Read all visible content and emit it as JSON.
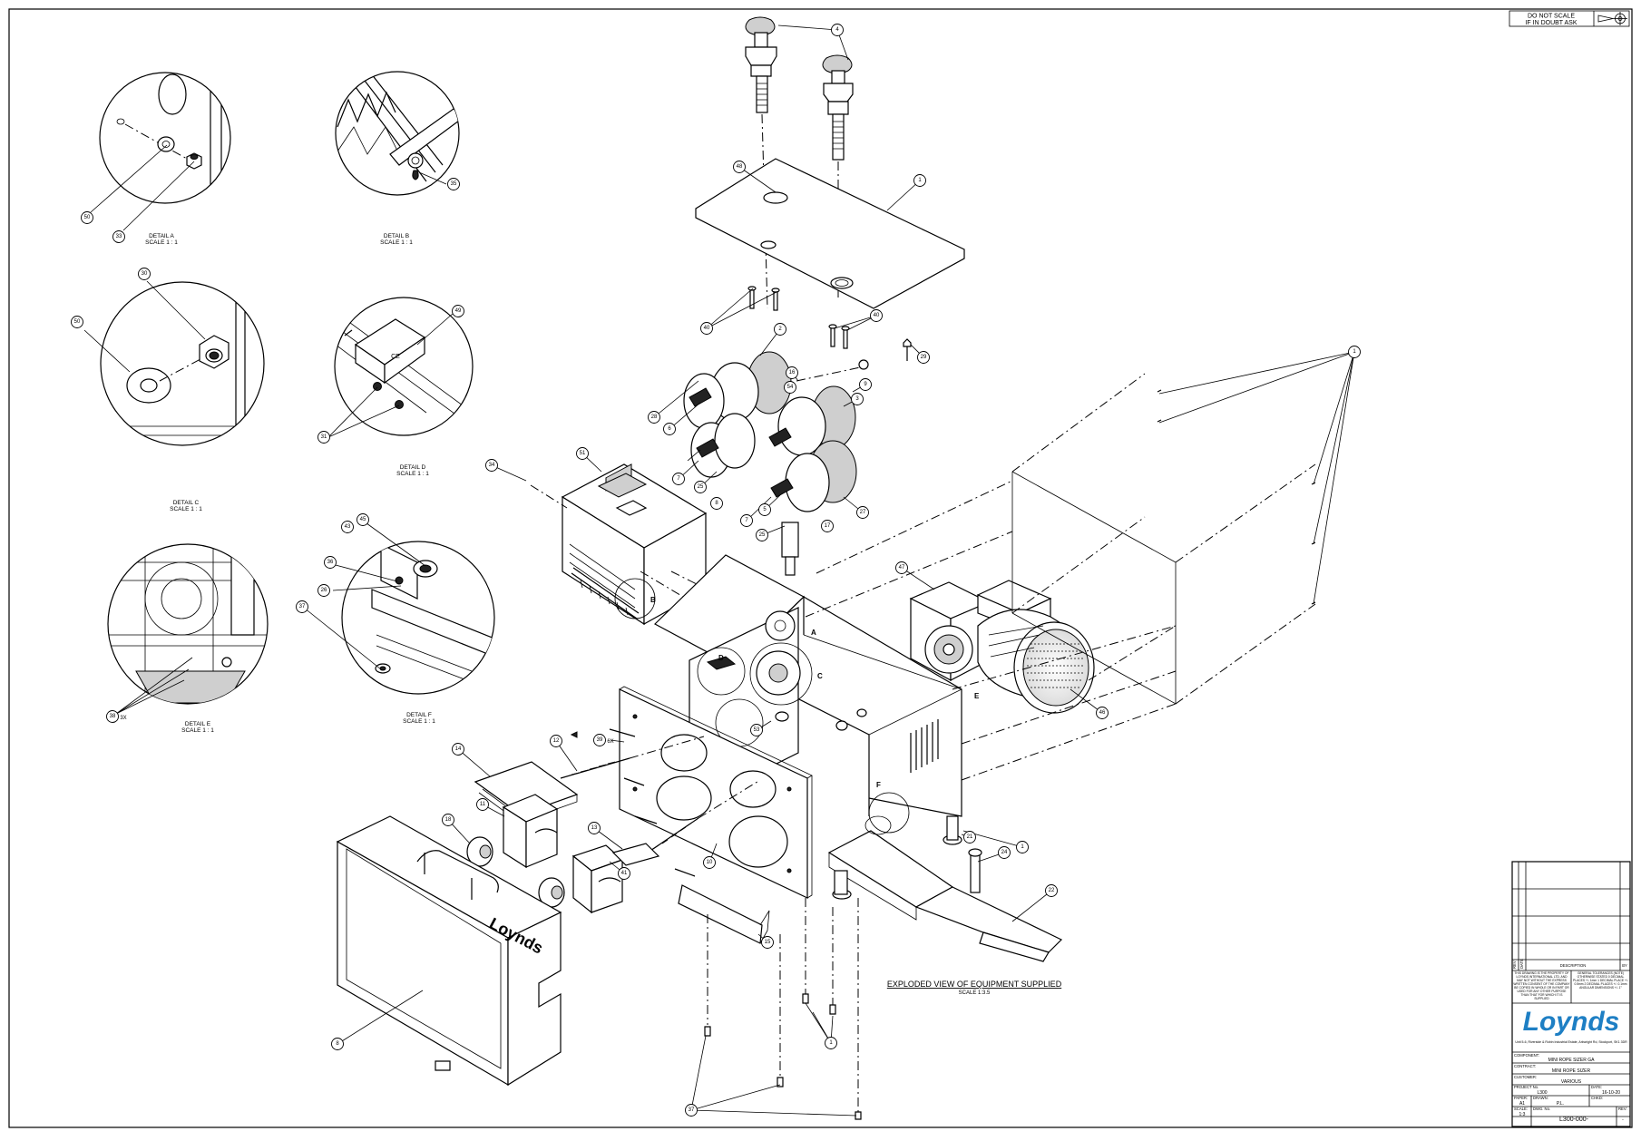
{
  "stamp": {
    "line1": "DO NOT SCALE",
    "line2": "IF IN DOUBT ASK"
  },
  "details": [
    {
      "title": "DETAIL A",
      "scale": "SCALE 1 : 1"
    },
    {
      "title": "DETAIL B",
      "scale": "SCALE 1 : 1"
    },
    {
      "title": "DETAIL C",
      "scale": "SCALE 1 : 1"
    },
    {
      "title": "DETAIL D",
      "scale": "SCALE 1 : 1"
    },
    {
      "title": "DETAIL E",
      "scale": "SCALE 1 : 1"
    },
    {
      "title": "DETAIL F",
      "scale": "SCALE 1 : 1"
    }
  ],
  "view": {
    "title": "EXPLODED VIEW OF EQUIPMENT SUPPLIED",
    "scale": "SCALE 1:3.5"
  },
  "detail_letters": [
    "A",
    "B",
    "C",
    "D",
    "E",
    "F"
  ],
  "balloons": {
    "b1": "1",
    "b2": "2",
    "b3": "3",
    "b4": "4",
    "b5": "5",
    "b6": "6",
    "b7": "7",
    "b8": "8",
    "b9": "9",
    "b10": "10",
    "b11": "11",
    "b12": "12",
    "b13": "13",
    "b14": "14",
    "b15": "15",
    "b16": "16",
    "b17": "17",
    "b18": "18",
    "b21": "21",
    "b22": "22",
    "b24": "24",
    "b25": "25",
    "b26": "26",
    "b27": "27",
    "b28": "28",
    "b29": "29",
    "b30": "30",
    "b31": "31",
    "b33": "33",
    "b34": "34",
    "b35": "35",
    "b36": "36",
    "b37": "37",
    "b38": "38",
    "b39": "39",
    "b40": "40",
    "b41": "41",
    "b43": "43",
    "b45": "45",
    "b46": "46",
    "b47": "47",
    "b48": "48",
    "b49": "49",
    "b50": "50",
    "b51": "51",
    "b53": "53",
    "b54": "54"
  },
  "balloon_suffix": {
    "b38": "3X",
    "b39": "6X"
  },
  "motor_brand": "Loynds",
  "title_block": {
    "rev_header": "REV",
    "date_header": "DATE",
    "description_header": "DESCRIPTION",
    "by_header": "BY",
    "notice": "THIS DRAWING IS THE PROPERTY OF LOYNDS INTERNATIONAL LTD. AND MAY NOT WITHOUT THE EXPRESS WRITTEN CONSENT OF THE COMPANY BE COPIED IN WHOLE OR IN PART OR USED FOR ANY OTHER PURPOSE THAN THAT FOR WHICH IT IS SUPPLIED",
    "tolerances": "GENERAL TOLERANCES (NOTE) OTHERWISE STATED 0 DECIMAL PLACES +/- 1mm 1 DECIMAL PLACE +/- 0.5mm 2 DECIMAL PLACES +/- 0.1mm ANGULAR DIMENSIONS +/- 1°",
    "logo": "Loynds",
    "address": "Unit 5-6, Riverside & Robin Industrial Estate, Arkwright Rd, Stockport, SK1 3DR",
    "component_label": "COMPONENT:",
    "component": "MINI ROPE SIZER GA",
    "contract_label": "CONTRACT:",
    "contract": "MINI ROPE SIZER",
    "customer_label": "CUSTOMER:",
    "customer": "VARIOUS",
    "project_label": "PROJECT No.",
    "project": "L300",
    "date_label": "DATE:",
    "date": "16-10-20",
    "paper_label": "PAPER:",
    "paper": "A1",
    "drawn_label": "DRAWN:",
    "drawn": "P.L.",
    "chkd_label": "CHKD:",
    "chkd": "",
    "scale_label": "SCALE:",
    "scale": "1:3",
    "dwg_label": "DWG. No.",
    "dwg": "L300-000-",
    "rev_label": "REV:",
    "rev": "-"
  }
}
